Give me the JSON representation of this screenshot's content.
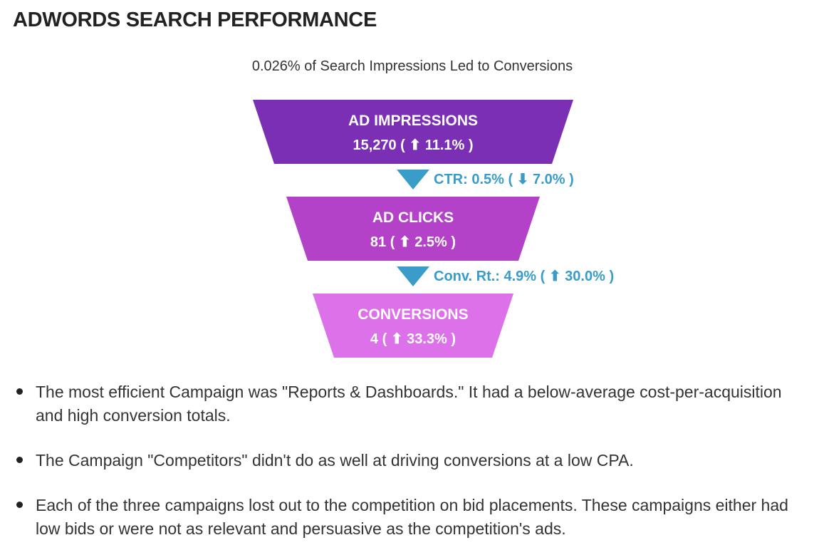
{
  "page": {
    "title": "ADWORDS SEARCH PERFORMANCE"
  },
  "chart_data": {
    "type": "funnel",
    "title": "0.026% of Search Impressions Led to Conversions",
    "stages": [
      {
        "name": "AD IMPRESSIONS",
        "value": 15270,
        "value_text": "15,270",
        "change_text": "11.1%",
        "change_direction": "up",
        "color": "#7b2fb5"
      },
      {
        "name": "AD CLICKS",
        "value": 81,
        "value_text": "81",
        "change_text": "2.5%",
        "change_direction": "up",
        "color": "#b342c9"
      },
      {
        "name": "CONVERSIONS",
        "value": 4,
        "value_text": "4",
        "change_text": "33.3%",
        "change_direction": "up",
        "color": "#dd71e9"
      }
    ],
    "rates": [
      {
        "label": "CTR:",
        "value_text": "0.5%",
        "change_text": "7.0%",
        "change_direction": "down"
      },
      {
        "label": "Conv. Rt.:",
        "value_text": "4.9%",
        "change_text": "30.0%",
        "change_direction": "up"
      }
    ],
    "arrow_color": "#3a9cc8",
    "rate_color": "#3a9cc8"
  },
  "insights": [
    "The most efficient Campaign was \"Reports & Dashboards.\" It had a below-average cost-per-acquisition and high conversion totals.",
    "The Campaign \"Competitors\" didn't do as well at driving conversions at a low CPA.",
    "Each of the three campaigns lost out to the competition on bid placements. These campaigns either had low bids or were not as relevant and persuasive as the competition's ads."
  ]
}
